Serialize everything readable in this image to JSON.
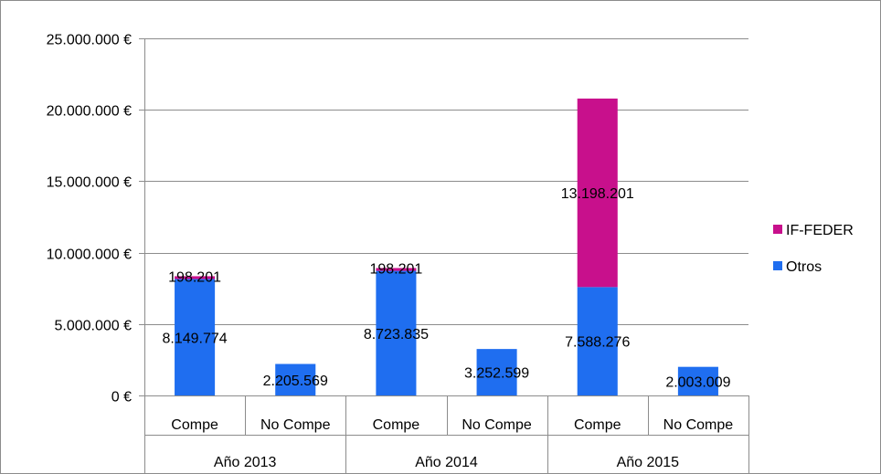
{
  "chart_data": {
    "type": "bar",
    "stacked": true,
    "currency_suffix": " €",
    "groups": [
      "Año 2013",
      "Año 2014",
      "Año 2015"
    ],
    "categories": [
      "Compe",
      "No Compe",
      "Compe",
      "No Compe",
      "Compe",
      "No Compe"
    ],
    "series": [
      {
        "name": "Otros",
        "color": "#1f6ef0",
        "values": [
          8149774,
          2205569,
          8723835,
          3252599,
          7588276,
          2003009
        ],
        "labels": [
          "8.149.774",
          "2.205.569",
          "8.723.835",
          "3.252.599",
          "7.588.276",
          "2.003.009"
        ]
      },
      {
        "name": "IF-FEDER",
        "color": "#c8108c",
        "values": [
          198201,
          0,
          198201,
          0,
          13198201,
          0
        ],
        "labels": [
          "198.201",
          "",
          "198.201",
          "",
          "13.198.201",
          ""
        ]
      }
    ],
    "ylim": [
      0,
      25000000
    ],
    "yticks": [
      0,
      5000000,
      10000000,
      15000000,
      20000000,
      25000000
    ],
    "ytick_labels": [
      "0 €",
      "5.000.000 €",
      "10.000.000 €",
      "15.000.000 €",
      "20.000.000 €",
      "25.000.000 €"
    ],
    "grid": true,
    "legend_position": "right",
    "legend_order": [
      "IF-FEDER",
      "Otros"
    ]
  }
}
